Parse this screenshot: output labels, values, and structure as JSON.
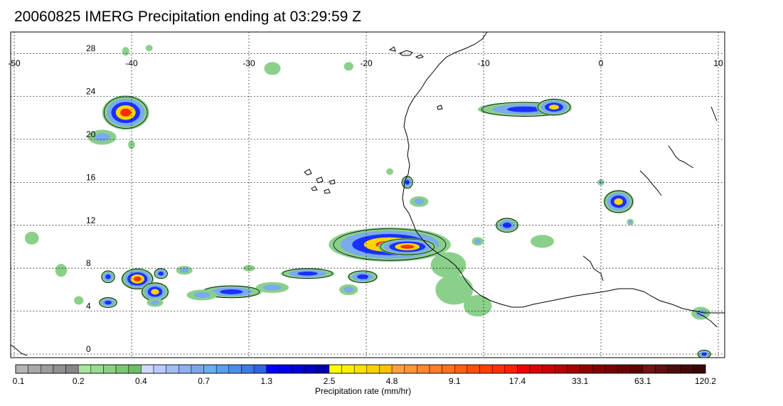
{
  "title": "20060825 IMERG Precipitation ending at 03:29:59 Z",
  "map": {
    "lon_range": [
      -50,
      10
    ],
    "lat_range": [
      -0.5,
      29
    ],
    "lon_ticks": [
      "-50",
      "-40",
      "-30",
      "-20",
      "-10",
      "0",
      "10"
    ],
    "lat_ticks": [
      "0",
      "4",
      "8",
      "12",
      "16",
      "20",
      "24",
      "28"
    ],
    "gridlines": true,
    "coastline_color": "#000000"
  },
  "colorbar": {
    "title": "Precipitation rate (mm/hr)",
    "labels": [
      "0.1",
      "0.2",
      "0.4",
      "0.7",
      "1.3",
      "2.5",
      "4.8",
      "9.1",
      "17.4",
      "33.1",
      "63.1",
      "120.2"
    ],
    "groups": [
      {
        "count": 5,
        "colors": [
          "#b4b4b4",
          "#a8a8a8",
          "#9c9c9c",
          "#909090",
          "#868686"
        ]
      },
      {
        "count": 5,
        "colors": [
          "#a8e6a0",
          "#98dc90",
          "#88d280",
          "#78c872",
          "#6abe66"
        ]
      },
      {
        "count": 5,
        "colors": [
          "#cfd8ff",
          "#b8caff",
          "#a2bcf8",
          "#8eb0f0",
          "#7ca6ec"
        ]
      },
      {
        "count": 5,
        "colors": [
          "#66b0f0",
          "#56a0ec",
          "#4a8ee8",
          "#3c7ae4",
          "#3064e0"
        ]
      },
      {
        "count": 5,
        "colors": [
          "#0000ff",
          "#0000e8",
          "#0000d4",
          "#0000c0",
          "#0000ac"
        ]
      },
      {
        "count": 5,
        "colors": [
          "#ffff00",
          "#fff000",
          "#ffe000",
          "#ffd000",
          "#ffc000"
        ]
      },
      {
        "count": 5,
        "colors": [
          "#ffa040",
          "#ff9438",
          "#ff8830",
          "#ff7c28",
          "#ff7020"
        ]
      },
      {
        "count": 5,
        "colors": [
          "#ff6010",
          "#ff5008",
          "#ff4000",
          "#ff3000",
          "#ff2000"
        ]
      },
      {
        "count": 5,
        "colors": [
          "#ee0000",
          "#dc0000",
          "#ca0000",
          "#b80000",
          "#a60000"
        ]
      },
      {
        "count": 5,
        "colors": [
          "#900000",
          "#840000",
          "#780000",
          "#6c0000",
          "#600000"
        ]
      },
      {
        "count": 5,
        "colors": [
          "#701414",
          "#601010",
          "#500c0c",
          "#440a0a",
          "#380808"
        ]
      }
    ]
  },
  "precip_cells": [
    {
      "lon": -40.5,
      "lat": 22.5,
      "rx": 2.0,
      "ry": 1.6,
      "peak": 4
    },
    {
      "lon": -42.5,
      "lat": 20.2,
      "rx": 1.2,
      "ry": 0.7,
      "peak": 1
    },
    {
      "lon": -40.0,
      "lat": 19.5,
      "rx": 0.3,
      "ry": 0.4,
      "peak": 0
    },
    {
      "lon": -6.5,
      "lat": 22.8,
      "rx": 4.0,
      "ry": 0.7,
      "peak": 2
    },
    {
      "lon": -4.0,
      "lat": 23.0,
      "rx": 1.5,
      "ry": 0.8,
      "peak": 3
    },
    {
      "lon": -18.0,
      "lat": 10.2,
      "rx": 5.2,
      "ry": 1.6,
      "peak": 4
    },
    {
      "lon": -16.5,
      "lat": 10.0,
      "rx": 2.5,
      "ry": 0.8,
      "peak": 4
    },
    {
      "lon": -20.3,
      "lat": 7.2,
      "rx": 1.3,
      "ry": 0.6,
      "peak": 2
    },
    {
      "lon": -21.5,
      "lat": 6.0,
      "rx": 0.8,
      "ry": 0.5,
      "peak": 1
    },
    {
      "lon": -25.0,
      "lat": 7.5,
      "rx": 2.3,
      "ry": 0.5,
      "peak": 2
    },
    {
      "lon": -28.0,
      "lat": 6.2,
      "rx": 1.4,
      "ry": 0.5,
      "peak": 1
    },
    {
      "lon": -31.5,
      "lat": 5.8,
      "rx": 2.6,
      "ry": 0.6,
      "peak": 2
    },
    {
      "lon": -34.0,
      "lat": 5.5,
      "rx": 1.3,
      "ry": 0.5,
      "peak": 1
    },
    {
      "lon": -39.5,
      "lat": 7.0,
      "rx": 1.4,
      "ry": 1.0,
      "peak": 4
    },
    {
      "lon": -38.0,
      "lat": 5.8,
      "rx": 1.2,
      "ry": 0.9,
      "peak": 3
    },
    {
      "lon": -42.0,
      "lat": 7.2,
      "rx": 0.6,
      "ry": 0.6,
      "peak": 2
    },
    {
      "lon": -37.5,
      "lat": 7.5,
      "rx": 0.6,
      "ry": 0.5,
      "peak": 2
    },
    {
      "lon": -35.5,
      "lat": 7.8,
      "rx": 0.7,
      "ry": 0.4,
      "peak": 1
    },
    {
      "lon": -42.0,
      "lat": 4.8,
      "rx": 0.8,
      "ry": 0.5,
      "peak": 2
    },
    {
      "lon": -38.0,
      "lat": 4.8,
      "rx": 0.7,
      "ry": 0.4,
      "peak": 1
    },
    {
      "lon": -16.5,
      "lat": 16.0,
      "rx": 0.5,
      "ry": 0.6,
      "peak": 2
    },
    {
      "lon": -15.5,
      "lat": 14.2,
      "rx": 0.8,
      "ry": 0.5,
      "peak": 1
    },
    {
      "lon": -8.0,
      "lat": 12.0,
      "rx": 1.0,
      "ry": 0.7,
      "peak": 2
    },
    {
      "lon": -10.5,
      "lat": 10.5,
      "rx": 0.5,
      "ry": 0.4,
      "peak": 1
    },
    {
      "lon": 1.5,
      "lat": 14.2,
      "rx": 1.3,
      "ry": 1.1,
      "peak": 3
    },
    {
      "lon": 0.0,
      "lat": 16.0,
      "rx": 0.3,
      "ry": 0.3,
      "peak": 1
    },
    {
      "lon": 2.5,
      "lat": 12.3,
      "rx": 0.3,
      "ry": 0.3,
      "peak": 1
    },
    {
      "lon": -12.5,
      "lat": 6.0,
      "rx": 1.6,
      "ry": 1.4,
      "peak": 0
    },
    {
      "lon": -13.0,
      "lat": 8.3,
      "rx": 1.5,
      "ry": 1.2,
      "peak": 0
    },
    {
      "lon": -10.5,
      "lat": 4.5,
      "rx": 1.2,
      "ry": 1.0,
      "peak": 0
    },
    {
      "lon": 8.5,
      "lat": 3.8,
      "rx": 0.8,
      "ry": 0.6,
      "peak": 1
    },
    {
      "lon": 8.8,
      "lat": 0.0,
      "rx": 0.6,
      "ry": 0.4,
      "peak": 2
    },
    {
      "lon": -48.5,
      "lat": 10.8,
      "rx": 0.6,
      "ry": 0.6,
      "peak": 0
    },
    {
      "lon": -46.0,
      "lat": 7.8,
      "rx": 0.5,
      "ry": 0.6,
      "peak": 0
    },
    {
      "lon": -40.5,
      "lat": 28.2,
      "rx": 0.3,
      "ry": 0.4,
      "peak": 0
    },
    {
      "lon": -38.5,
      "lat": 28.5,
      "rx": 0.3,
      "ry": 0.3,
      "peak": 0
    },
    {
      "lon": -28.0,
      "lat": 26.6,
      "rx": 0.7,
      "ry": 0.6,
      "peak": 0
    },
    {
      "lon": -21.5,
      "lat": 26.8,
      "rx": 0.4,
      "ry": 0.4,
      "peak": 0
    },
    {
      "lon": -5.0,
      "lat": 10.5,
      "rx": 1.0,
      "ry": 0.6,
      "peak": 0
    },
    {
      "lon": -18.0,
      "lat": 17.0,
      "rx": 0.3,
      "ry": 0.3,
      "peak": 0
    },
    {
      "lon": -44.5,
      "lat": 5.0,
      "rx": 0.4,
      "ry": 0.4,
      "peak": 0
    },
    {
      "lon": -30.0,
      "lat": 8.0,
      "rx": 0.5,
      "ry": 0.3,
      "peak": 0
    }
  ]
}
